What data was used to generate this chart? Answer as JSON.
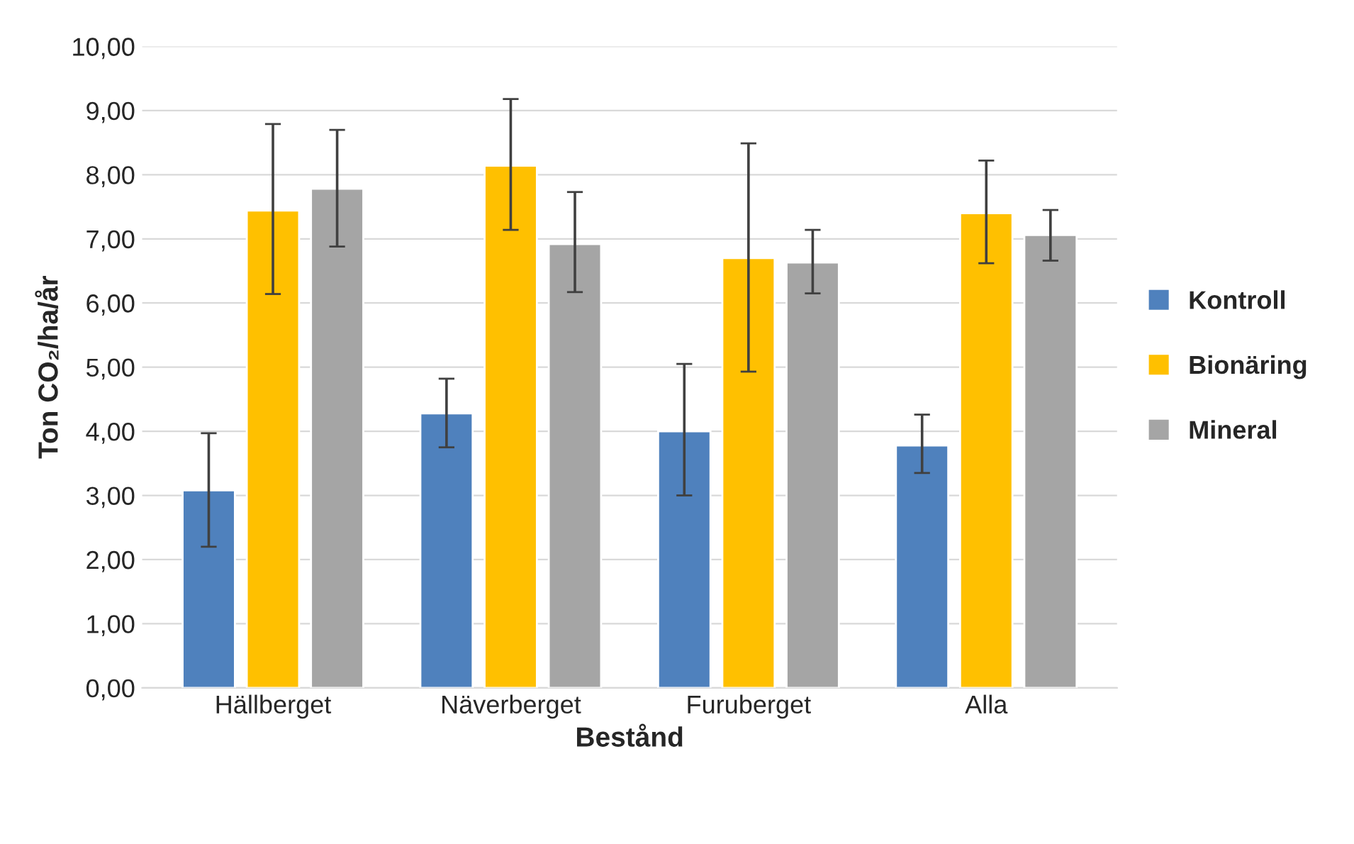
{
  "chart_data": {
    "type": "bar",
    "xlabel": "Bestånd",
    "ylabel": "Ton CO₂/ha/år",
    "categories": [
      "Hällberget",
      "Näverberget",
      "Furuberget",
      "Alla"
    ],
    "series": [
      {
        "name": "Kontroll",
        "color": "#4f81bd",
        "values": [
          3.08,
          4.28,
          4.0,
          3.78
        ],
        "errors": [
          [
            2.2,
            3.97
          ],
          [
            3.75,
            4.82
          ],
          [
            3.0,
            5.05
          ],
          [
            3.35,
            4.26
          ]
        ]
      },
      {
        "name": "Bionäring",
        "color": "#ffc000",
        "values": [
          7.44,
          8.14,
          6.7,
          7.4
        ],
        "errors": [
          [
            6.14,
            8.79
          ],
          [
            7.14,
            9.18
          ],
          [
            4.93,
            8.49
          ],
          [
            6.62,
            8.22
          ]
        ]
      },
      {
        "name": "Mineral",
        "color": "#a5a5a5",
        "values": [
          7.78,
          6.92,
          6.63,
          7.06
        ],
        "errors": [
          [
            6.88,
            8.7
          ],
          [
            6.17,
            7.73
          ],
          [
            6.15,
            7.14
          ],
          [
            6.66,
            7.45
          ]
        ]
      }
    ],
    "ylim": [
      0,
      10
    ],
    "yticks": [
      {
        "value": 0,
        "label": "0,00"
      },
      {
        "value": 1,
        "label": "1,00"
      },
      {
        "value": 2,
        "label": "2,00"
      },
      {
        "value": 3,
        "label": "3,00"
      },
      {
        "value": 4,
        "label": "4,00"
      },
      {
        "value": 5,
        "label": "5,00"
      },
      {
        "value": 6,
        "label": "6,00"
      },
      {
        "value": 7,
        "label": "7,00"
      },
      {
        "value": 8,
        "label": "8,00"
      },
      {
        "value": 9,
        "label": "9,00"
      },
      {
        "value": 10,
        "label": "10,00"
      }
    ],
    "grid": "y",
    "legend": "right"
  }
}
